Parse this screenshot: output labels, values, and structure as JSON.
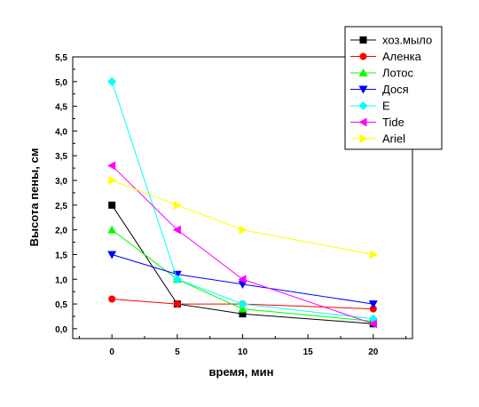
{
  "chart_data": {
    "type": "line",
    "x": [
      0,
      5,
      10,
      20
    ],
    "xlabel": "время, мин",
    "ylabel": "Высота пены, см",
    "xlim": [
      -3,
      23
    ],
    "ylim": [
      -0.2,
      5.5
    ],
    "xticks": [
      "0",
      "5",
      "10",
      "15",
      "20"
    ],
    "yticks": [
      "0,0",
      "0,5",
      "1,0",
      "1,5",
      "2,0",
      "2,5",
      "3,0",
      "3,5",
      "4,0",
      "4,5",
      "5,0",
      "5,5"
    ],
    "grid": false,
    "legend_position": "top-right",
    "series": [
      {
        "name": "хоз.мыло",
        "color": "#000000",
        "marker": "square",
        "values": [
          2.5,
          0.5,
          0.3,
          0.1
        ]
      },
      {
        "name": "Аленка",
        "color": "#ff0000",
        "marker": "circle",
        "values": [
          0.6,
          0.5,
          0.5,
          0.4
        ]
      },
      {
        "name": "Лотос",
        "color": "#00ff00",
        "marker": "triangle-up",
        "values": [
          2.0,
          1.0,
          0.4,
          0.15
        ]
      },
      {
        "name": "Дося",
        "color": "#0000ff",
        "marker": "triangle-down",
        "values": [
          1.5,
          1.1,
          0.9,
          0.5
        ]
      },
      {
        "name": "E",
        "color": "#00ffff",
        "marker": "diamond",
        "values": [
          5.0,
          1.0,
          0.5,
          0.2
        ]
      },
      {
        "name": "Tide",
        "color": "#ff00ff",
        "marker": "triangle-left",
        "values": [
          3.3,
          2.0,
          1.0,
          0.1
        ]
      },
      {
        "name": "Ariel",
        "color": "#ffff00",
        "marker": "triangle-right",
        "values": [
          3.0,
          2.5,
          2.0,
          1.5
        ]
      }
    ]
  }
}
